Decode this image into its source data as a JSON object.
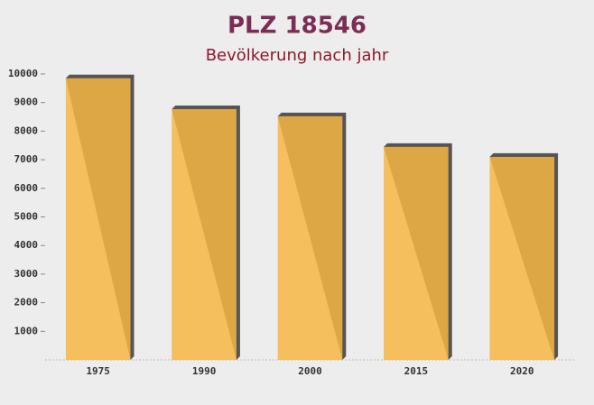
{
  "chart_data": {
    "type": "bar",
    "title": "PLZ 18546",
    "subtitle": "Bevölkerung nach jahr",
    "categories": [
      "1975",
      "1990",
      "2000",
      "2015",
      "2020"
    ],
    "values": [
      9850,
      8770,
      8520,
      7450,
      7100
    ],
    "color": "#f5b642",
    "ylim": [
      0,
      10000
    ],
    "yticks": [
      1000,
      2000,
      3000,
      4000,
      5000,
      6000,
      7000,
      8000,
      9000,
      10000
    ],
    "grid": false
  }
}
